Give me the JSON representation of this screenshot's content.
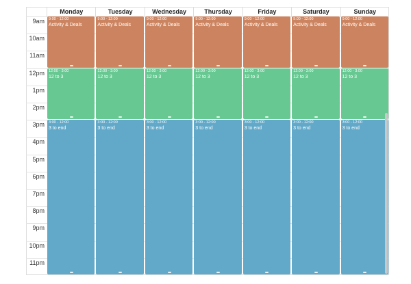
{
  "days": [
    "Monday",
    "Tuesday",
    "Wednesday",
    "Thursday",
    "Friday",
    "Saturday",
    "Sunday"
  ],
  "hours": [
    "9am",
    "10am",
    "11am",
    "12pm",
    "1pm",
    "2pm",
    "3pm",
    "4pm",
    "5pm",
    "6pm",
    "7pm",
    "8pm",
    "9pm",
    "10pm",
    "11pm"
  ],
  "event_blocks": [
    {
      "time": "9:00 - 12:00",
      "title": "Activity & Deals",
      "color": "#cc8460",
      "start_hour": 9,
      "end_hour": 12
    },
    {
      "time": "12:00 - 3:00",
      "title": "12 to 3",
      "color": "#67c891",
      "start_hour": 12,
      "end_hour": 15
    },
    {
      "time": "3:00 - 12:00",
      "title": "3 to end",
      "color": "#62a9c9",
      "start_hour": 15,
      "end_hour": 24
    }
  ]
}
